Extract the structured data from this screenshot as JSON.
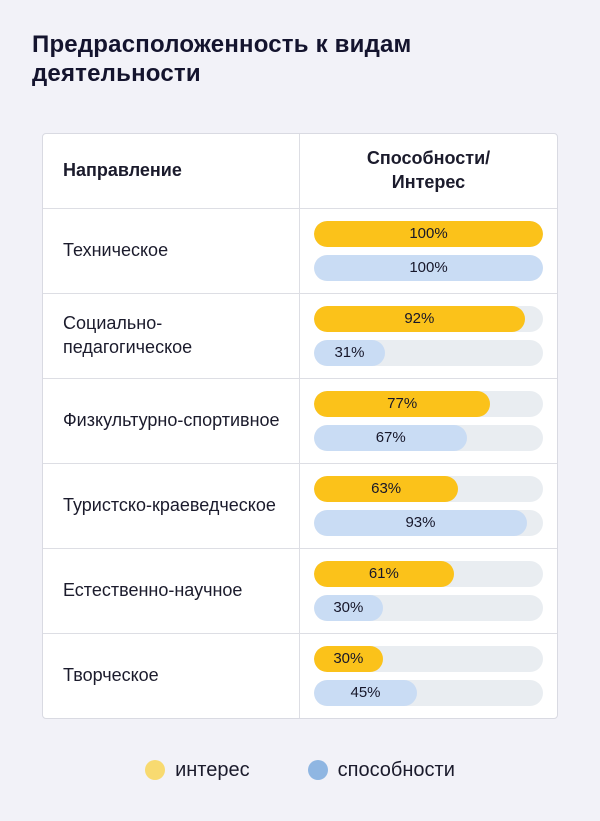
{
  "title": "Предрасположенность к видам деятельности",
  "table": {
    "header": {
      "direction": "Направление",
      "ability_interest": "Способности/\nИнтерес"
    }
  },
  "chart_data": {
    "type": "bar",
    "title": "Предрасположенность к видам деятельности",
    "categories": [
      "Техническое",
      "Социально-педагогическое",
      "Физкультурно-спортивное",
      "Туристско-краеведческое",
      "Естественно-научное",
      "Творческое"
    ],
    "series": [
      {
        "name": "интерес",
        "color": "#FBC21A",
        "values": [
          100,
          92,
          77,
          63,
          61,
          30
        ]
      },
      {
        "name": "способности",
        "color": "#C9DCF4",
        "values": [
          100,
          31,
          67,
          93,
          30,
          45
        ]
      }
    ],
    "value_suffix": "%",
    "xlim": [
      0,
      100
    ],
    "track_color": "#E9EDF1",
    "legend_position": "bottom"
  },
  "legend": [
    {
      "label": "интерес",
      "color": "#F8DA70"
    },
    {
      "label": "способности",
      "color": "#8FB6E2"
    }
  ]
}
